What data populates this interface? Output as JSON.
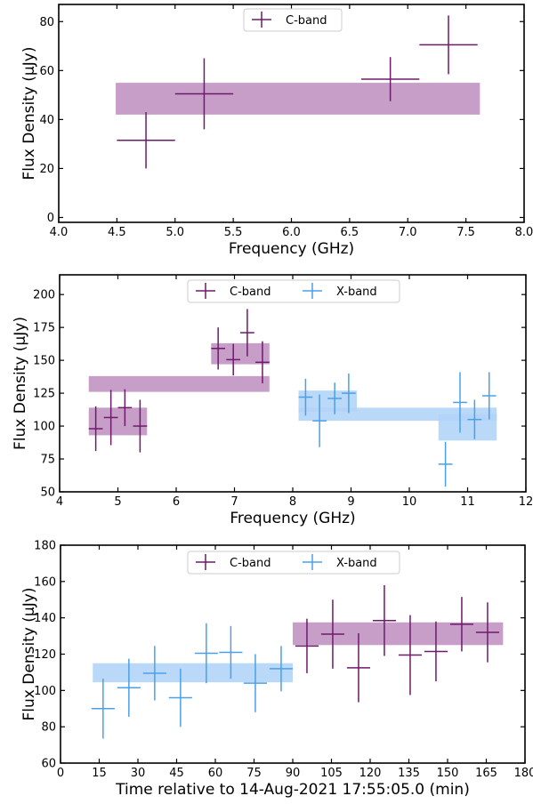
{
  "colors": {
    "c_band": "#6e1a6a",
    "x_band": "#4aa0e8",
    "c_fill": "#c79ec8",
    "x_fill": "#b3d4f7"
  },
  "chart_data": [
    {
      "type": "scatter",
      "xlabel": "Frequency (GHz)",
      "ylabel": "Flux Density (μJy)",
      "xlim": [
        4.0,
        8.0
      ],
      "ylim": [
        -2,
        87
      ],
      "xticks": [
        4.0,
        4.5,
        5.0,
        5.5,
        6.0,
        6.5,
        7.0,
        7.5,
        8.0
      ],
      "xtick_labels": [
        "4.0",
        "4.5",
        "5.0",
        "5.5",
        "6.0",
        "6.5",
        "7.0",
        "7.5",
        "8.0"
      ],
      "yticks": [
        0,
        20,
        40,
        60,
        80
      ],
      "ytick_labels": [
        "0",
        "20",
        "40",
        "60",
        "80"
      ],
      "legend": {
        "position": "top-center",
        "entries": [
          {
            "series": "c_band",
            "label": "C-band"
          }
        ]
      },
      "bands": [
        {
          "series": "c_band",
          "x0": 4.49,
          "x1": 7.62,
          "y0": 42,
          "y1": 55
        }
      ],
      "series": [
        {
          "key": "c_band",
          "name": "C-band",
          "points": [
            {
              "x": 4.75,
              "xerr": 0.25,
              "y": 31.5,
              "yerr": 11.5
            },
            {
              "x": 5.25,
              "xerr": 0.25,
              "y": 50.5,
              "yerr": 14.5
            },
            {
              "x": 6.85,
              "xerr": 0.25,
              "y": 56.5,
              "yerr": 9
            },
            {
              "x": 7.35,
              "xerr": 0.25,
              "y": 70.5,
              "yerr": 12
            }
          ]
        }
      ]
    },
    {
      "type": "scatter",
      "xlabel": "Frequency (GHz)",
      "ylabel": "Flux Density (μJy)",
      "xlim": [
        4,
        12
      ],
      "ylim": [
        50,
        215
      ],
      "xticks": [
        4,
        5,
        6,
        7,
        8,
        9,
        10,
        11,
        12
      ],
      "xtick_labels": [
        "4",
        "5",
        "6",
        "7",
        "8",
        "9",
        "10",
        "11",
        "12"
      ],
      "yticks": [
        50,
        75,
        100,
        125,
        150,
        175,
        200
      ],
      "ytick_labels": [
        "50",
        "75",
        "100",
        "125",
        "150",
        "175",
        "200"
      ],
      "legend": {
        "position": "top-center",
        "entries": [
          {
            "series": "c_band",
            "label": "C-band"
          },
          {
            "series": "x_band",
            "label": "X-band"
          }
        ]
      },
      "bands": [
        {
          "series": "c_band",
          "x0": 4.5,
          "x1": 7.6,
          "y0": 126,
          "y1": 138
        },
        {
          "series": "c_band",
          "x0": 4.5,
          "x1": 5.5,
          "y0": 93,
          "y1": 114
        },
        {
          "series": "c_band",
          "x0": 6.6,
          "x1": 7.6,
          "y0": 147,
          "y1": 163
        },
        {
          "series": "x_band",
          "x0": 8.1,
          "x1": 11.5,
          "y0": 104,
          "y1": 114
        },
        {
          "series": "x_band",
          "x0": 8.1,
          "x1": 9.1,
          "y0": 111,
          "y1": 127
        },
        {
          "series": "x_band",
          "x0": 10.5,
          "x1": 11.5,
          "y0": 89,
          "y1": 109
        }
      ],
      "series": [
        {
          "key": "c_band",
          "name": "C-band",
          "points": [
            {
              "x": 4.62,
              "xerr": 0.12,
              "y": 98,
              "yerr": 17
            },
            {
              "x": 4.88,
              "xerr": 0.12,
              "y": 106.5,
              "yerr": 21
            },
            {
              "x": 5.12,
              "xerr": 0.12,
              "y": 114,
              "yerr": 14
            },
            {
              "x": 5.38,
              "xerr": 0.12,
              "y": 100,
              "yerr": 20
            },
            {
              "x": 6.72,
              "xerr": 0.12,
              "y": 159,
              "yerr": 16
            },
            {
              "x": 6.98,
              "xerr": 0.12,
              "y": 150.5,
              "yerr": 12
            },
            {
              "x": 7.22,
              "xerr": 0.12,
              "y": 171,
              "yerr": 18
            },
            {
              "x": 7.48,
              "xerr": 0.12,
              "y": 148.5,
              "yerr": 16
            }
          ]
        },
        {
          "key": "x_band",
          "name": "X-band",
          "points": [
            {
              "x": 8.22,
              "xerr": 0.12,
              "y": 122,
              "yerr": 14
            },
            {
              "x": 8.46,
              "xerr": 0.12,
              "y": 104,
              "yerr": 20
            },
            {
              "x": 8.72,
              "xerr": 0.12,
              "y": 121,
              "yerr": 12
            },
            {
              "x": 8.96,
              "xerr": 0.12,
              "y": 125,
              "yerr": 15
            },
            {
              "x": 10.62,
              "xerr": 0.12,
              "y": 71,
              "yerr": 17
            },
            {
              "x": 10.87,
              "xerr": 0.12,
              "y": 118,
              "yerr": 23
            },
            {
              "x": 11.12,
              "xerr": 0.12,
              "y": 105,
              "yerr": 15
            },
            {
              "x": 11.37,
              "xerr": 0.12,
              "y": 123,
              "yerr": 18
            }
          ]
        }
      ]
    },
    {
      "type": "scatter",
      "xlabel": "Time relative to 14-Aug-2021 17:55:05.0 (min)",
      "ylabel": "Flux Density (μJy)",
      "xlim": [
        0,
        180
      ],
      "ylim": [
        60,
        180
      ],
      "xticks": [
        0,
        15,
        30,
        45,
        60,
        75,
        90,
        105,
        120,
        135,
        150,
        165,
        180
      ],
      "xtick_labels": [
        "0",
        "15",
        "30",
        "45",
        "60",
        "75",
        "90",
        "105",
        "120",
        "135",
        "150",
        "165",
        "180"
      ],
      "yticks": [
        60,
        80,
        100,
        120,
        140,
        160,
        180
      ],
      "ytick_labels": [
        "60",
        "80",
        "100",
        "120",
        "140",
        "160",
        "180"
      ],
      "legend": {
        "position": "top-center",
        "entries": [
          {
            "series": "c_band",
            "label": "C-band"
          },
          {
            "series": "x_band",
            "label": "X-band"
          }
        ]
      },
      "bands": [
        {
          "series": "x_band",
          "x0": 12.5,
          "x1": 90,
          "y0": 104.5,
          "y1": 115
        },
        {
          "series": "c_band",
          "x0": 90,
          "x1": 171.5,
          "y0": 125,
          "y1": 137.5
        }
      ],
      "series": [
        {
          "key": "c_band",
          "name": "C-band",
          "points": [
            {
              "x": 95.5,
              "xerr": 4.5,
              "y": 124.5,
              "yerr": 15
            },
            {
              "x": 105.5,
              "xerr": 4.5,
              "y": 131,
              "yerr": 19
            },
            {
              "x": 115.5,
              "xerr": 4.5,
              "y": 112.5,
              "yerr": 19
            },
            {
              "x": 125.5,
              "xerr": 4.5,
              "y": 138.5,
              "yerr": 19.5
            },
            {
              "x": 135.5,
              "xerr": 4.5,
              "y": 119.5,
              "yerr": 22
            },
            {
              "x": 145.5,
              "xerr": 4.5,
              "y": 121.5,
              "yerr": 16.5
            },
            {
              "x": 155.5,
              "xerr": 4.5,
              "y": 136.5,
              "yerr": 15
            },
            {
              "x": 165.5,
              "xerr": 4.5,
              "y": 132,
              "yerr": 16.5
            }
          ]
        },
        {
          "key": "x_band",
          "name": "X-band",
          "points": [
            {
              "x": 16.5,
              "xerr": 4.5,
              "y": 90,
              "yerr": 16.5
            },
            {
              "x": 26.5,
              "xerr": 4.5,
              "y": 101.5,
              "yerr": 16
            },
            {
              "x": 36.5,
              "xerr": 4.5,
              "y": 109.5,
              "yerr": 15
            },
            {
              "x": 46.5,
              "xerr": 4.5,
              "y": 96,
              "yerr": 16
            },
            {
              "x": 56.5,
              "xerr": 4.5,
              "y": 120.5,
              "yerr": 16.5
            },
            {
              "x": 66,
              "xerr": 4.5,
              "y": 121,
              "yerr": 14.5
            },
            {
              "x": 75.5,
              "xerr": 4.5,
              "y": 104,
              "yerr": 16
            },
            {
              "x": 85.5,
              "xerr": 4.5,
              "y": 112,
              "yerr": 12.5
            }
          ]
        }
      ]
    }
  ]
}
